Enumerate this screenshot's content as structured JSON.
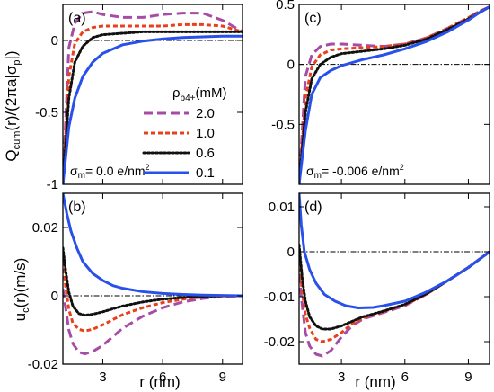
{
  "figure": {
    "ylabel_top_main": "Q",
    "ylabel_top_sub": "cum",
    "ylabel_top_rest": "(r)/(2πa|σ",
    "ylabel_top_sub2": "p",
    "ylabel_top_end": "|)",
    "ylabel_bottom": "u",
    "ylabel_bottom_sub": "c",
    "ylabel_bottom_rest": "(r)(m/s)",
    "xlabel_left": "r (nm)",
    "xlabel_right": "r (nm)",
    "legend_title": "ρ",
    "legend_title_sub": "b4+",
    "legend_title_unit": "(mM)"
  },
  "chart_data": [
    {
      "type": "line",
      "panel": "a",
      "annotation": "σ_m= 0.0 e/nm²",
      "annotation_main": "σ",
      "annotation_sub": "m",
      "annotation_rest": "= 0.0 e/nm",
      "annotation_sup": "2",
      "xlim": [
        1.0,
        10.0
      ],
      "ylim": [
        -1.0,
        0.25
      ],
      "xticks": [
        3,
        6,
        9
      ],
      "xtick_labels": [
        "",
        "",
        ""
      ],
      "yticks": [
        -1,
        -0.5,
        0
      ],
      "ytick_labels": [
        "-1",
        "-0.5",
        "0"
      ],
      "reference_line": 0,
      "series": [
        {
          "name": "2.0",
          "color": "#a64ca6",
          "dash": "10,5",
          "x": [
            1.0,
            1.3,
            1.6,
            2.0,
            2.5,
            3.0,
            4.0,
            5.0,
            6.0,
            7.0,
            8.0,
            9.0,
            9.5,
            10.0
          ],
          "y": [
            -1.0,
            -0.05,
            0.12,
            0.19,
            0.2,
            0.18,
            0.16,
            0.16,
            0.18,
            0.19,
            0.19,
            0.14,
            0.1,
            0.06
          ]
        },
        {
          "name": "1.0",
          "color": "#e8401c",
          "dash": "5,3",
          "x": [
            1.0,
            1.3,
            1.6,
            2.0,
            2.5,
            3.0,
            4.0,
            5.0,
            6.0,
            7.0,
            8.0,
            9.0,
            9.5,
            10.0
          ],
          "y": [
            -1.0,
            -0.25,
            -0.02,
            0.06,
            0.09,
            0.1,
            0.1,
            0.1,
            0.1,
            0.11,
            0.11,
            0.1,
            0.08,
            0.06
          ]
        },
        {
          "name": "0.6",
          "color": "#111111",
          "dash": "2,2.5",
          "x": [
            1.0,
            1.3,
            1.6,
            2.0,
            2.5,
            3.0,
            4.0,
            5.0,
            6.0,
            7.0,
            8.0,
            9.0,
            9.5,
            10.0
          ],
          "y": [
            -1.0,
            -0.4,
            -0.15,
            -0.04,
            0.02,
            0.04,
            0.05,
            0.06,
            0.06,
            0.06,
            0.06,
            0.06,
            0.06,
            0.06
          ]
        },
        {
          "name": "0.1",
          "color": "#2850ea",
          "dash": "",
          "x": [
            1.0,
            1.3,
            1.6,
            2.0,
            2.5,
            3.0,
            4.0,
            5.0,
            6.0,
            7.0,
            8.0,
            9.0,
            9.5,
            10.0
          ],
          "y": [
            -1.0,
            -0.6,
            -0.4,
            -0.25,
            -0.15,
            -0.09,
            -0.03,
            -0.005,
            0.01,
            0.02,
            0.025,
            0.03,
            0.03,
            0.03
          ]
        }
      ]
    },
    {
      "type": "line",
      "panel": "b",
      "xlim": [
        1.0,
        10.0
      ],
      "ylim": [
        -0.02,
        0.03
      ],
      "xticks": [
        3,
        6,
        9
      ],
      "xtick_labels": [
        "3",
        "6",
        "9"
      ],
      "yticks": [
        -0.02,
        0,
        0.02
      ],
      "ytick_labels": [
        "-0.02",
        "0",
        "0.02"
      ],
      "reference_line": 0,
      "series": [
        {
          "name": "2.0",
          "color": "#a64ca6",
          "dash": "10,5",
          "x": [
            1.0,
            1.15,
            1.3,
            1.5,
            1.8,
            2.1,
            2.5,
            3.0,
            3.5,
            4.0,
            5.0,
            6.0,
            7.0,
            8.0,
            9.0,
            10.0
          ],
          "y": [
            0.002,
            -0.004,
            -0.01,
            -0.014,
            -0.0165,
            -0.017,
            -0.0163,
            -0.0145,
            -0.012,
            -0.0095,
            -0.006,
            -0.0035,
            -0.0018,
            -0.0008,
            -0.0002,
            0.0
          ]
        },
        {
          "name": "1.0",
          "color": "#e8401c",
          "dash": "5,3",
          "x": [
            1.0,
            1.15,
            1.3,
            1.5,
            1.8,
            2.1,
            2.5,
            3.0,
            3.5,
            4.0,
            5.0,
            6.0,
            7.0,
            8.0,
            9.0,
            10.0
          ],
          "y": [
            0.01,
            0.002,
            -0.004,
            -0.008,
            -0.0098,
            -0.0103,
            -0.0098,
            -0.0085,
            -0.007,
            -0.0055,
            -0.0035,
            -0.002,
            -0.001,
            -0.0004,
            -0.0001,
            0.0
          ]
        },
        {
          "name": "0.6",
          "color": "#111111",
          "dash": "2,2.5",
          "x": [
            1.0,
            1.15,
            1.3,
            1.5,
            1.8,
            2.1,
            2.5,
            3.0,
            3.5,
            4.0,
            5.0,
            6.0,
            7.0,
            8.0,
            9.0,
            10.0
          ],
          "y": [
            0.014,
            0.007,
            0.001,
            -0.003,
            -0.0052,
            -0.0057,
            -0.0054,
            -0.0047,
            -0.0038,
            -0.003,
            -0.0018,
            -0.001,
            -0.0005,
            -0.0002,
            0.0,
            0.0
          ]
        },
        {
          "name": "0.1",
          "color": "#2850ea",
          "dash": "",
          "x": [
            1.0,
            1.2,
            1.4,
            1.7,
            2.0,
            2.5,
            3.0,
            3.5,
            4.0,
            5.0,
            6.0,
            7.0,
            8.0,
            9.0,
            10.0
          ],
          "y": [
            0.03,
            0.024,
            0.019,
            0.014,
            0.01,
            0.0065,
            0.0045,
            0.003,
            0.0022,
            0.0012,
            0.0007,
            0.0004,
            0.0002,
            0.0001,
            0.0
          ]
        }
      ]
    },
    {
      "type": "line",
      "panel": "c",
      "annotation": "σ_m= -0.006 e/nm²",
      "annotation_main": "σ",
      "annotation_sub": "m",
      "annotation_rest": "= -0.006 e/nm",
      "annotation_sup": "2",
      "xlim": [
        1.0,
        10.0
      ],
      "ylim": [
        -1.0,
        0.5
      ],
      "xticks": [
        3,
        6,
        9
      ],
      "xtick_labels": [
        "",
        "",
        ""
      ],
      "yticks": [
        -0.5,
        0,
        0.5
      ],
      "ytick_labels": [
        "-0.5",
        "0",
        "0.5"
      ],
      "reference_line": 0,
      "series": [
        {
          "name": "2.0",
          "color": "#a64ca6",
          "dash": "10,5",
          "x": [
            1.0,
            1.3,
            1.6,
            2.0,
            2.5,
            3.0,
            4.0,
            5.0,
            6.0,
            7.0,
            8.0,
            9.0,
            9.5,
            10.0
          ],
          "y": [
            -1.0,
            -0.1,
            0.08,
            0.15,
            0.17,
            0.17,
            0.16,
            0.15,
            0.17,
            0.22,
            0.3,
            0.39,
            0.44,
            0.48
          ]
        },
        {
          "name": "1.0",
          "color": "#e8401c",
          "dash": "5,3",
          "x": [
            1.0,
            1.3,
            1.6,
            2.0,
            2.5,
            3.0,
            4.0,
            5.0,
            6.0,
            7.0,
            8.0,
            9.0,
            9.5,
            10.0
          ],
          "y": [
            -1.0,
            -0.28,
            -0.02,
            0.08,
            0.12,
            0.13,
            0.14,
            0.15,
            0.17,
            0.22,
            0.3,
            0.39,
            0.44,
            0.48
          ]
        },
        {
          "name": "0.6",
          "color": "#111111",
          "dash": "2,2.5",
          "x": [
            1.0,
            1.3,
            1.6,
            2.0,
            2.5,
            3.0,
            4.0,
            5.0,
            6.0,
            7.0,
            8.0,
            9.0,
            9.5,
            10.0
          ],
          "y": [
            -1.0,
            -0.4,
            -0.12,
            0.0,
            0.06,
            0.09,
            0.11,
            0.13,
            0.16,
            0.21,
            0.29,
            0.38,
            0.43,
            0.48
          ]
        },
        {
          "name": "0.1",
          "color": "#2850ea",
          "dash": "",
          "x": [
            1.0,
            1.3,
            1.6,
            2.0,
            2.5,
            3.0,
            4.0,
            5.0,
            6.0,
            7.0,
            8.0,
            9.0,
            9.5,
            10.0
          ],
          "y": [
            -1.0,
            -0.55,
            -0.25,
            -0.11,
            -0.05,
            -0.01,
            0.04,
            0.08,
            0.13,
            0.19,
            0.27,
            0.37,
            0.43,
            0.48
          ]
        }
      ]
    },
    {
      "type": "line",
      "panel": "d",
      "xlim": [
        1.0,
        10.0
      ],
      "ylim": [
        -0.025,
        0.013
      ],
      "xticks": [
        3,
        6,
        9
      ],
      "xtick_labels": [
        "3",
        "6",
        "9"
      ],
      "yticks": [
        -0.02,
        -0.01,
        0,
        0.01
      ],
      "ytick_labels": [
        "-0.02",
        "-0.01",
        "0",
        "0.01"
      ],
      "reference_line": 0,
      "series": [
        {
          "name": "2.0",
          "color": "#a64ca6",
          "dash": "10,5",
          "x": [
            1.0,
            1.15,
            1.3,
            1.5,
            1.8,
            2.1,
            2.5,
            3.0,
            3.5,
            4.0,
            5.0,
            6.0,
            7.0,
            8.0,
            9.0,
            10.0
          ],
          "y": [
            -0.005,
            -0.012,
            -0.018,
            -0.021,
            -0.0228,
            -0.0232,
            -0.022,
            -0.019,
            -0.0165,
            -0.015,
            -0.0135,
            -0.012,
            -0.0095,
            -0.0065,
            -0.0035,
            0.0
          ]
        },
        {
          "name": "1.0",
          "color": "#e8401c",
          "dash": "5,3",
          "x": [
            1.0,
            1.15,
            1.3,
            1.5,
            1.8,
            2.1,
            2.5,
            3.0,
            3.5,
            4.0,
            5.0,
            6.0,
            7.0,
            8.0,
            9.0,
            10.0
          ],
          "y": [
            -0.002,
            -0.009,
            -0.014,
            -0.017,
            -0.0195,
            -0.02,
            -0.0195,
            -0.018,
            -0.016,
            -0.0148,
            -0.0133,
            -0.0118,
            -0.0095,
            -0.0065,
            -0.0035,
            0.0
          ]
        },
        {
          "name": "0.6",
          "color": "#111111",
          "dash": "2,2.5",
          "x": [
            1.0,
            1.15,
            1.3,
            1.5,
            1.8,
            2.1,
            2.5,
            3.0,
            3.5,
            4.0,
            5.0,
            6.0,
            7.0,
            8.0,
            9.0,
            10.0
          ],
          "y": [
            0.0015,
            -0.006,
            -0.011,
            -0.0145,
            -0.0165,
            -0.0172,
            -0.0172,
            -0.0165,
            -0.0155,
            -0.0145,
            -0.0132,
            -0.0117,
            -0.0094,
            -0.0065,
            -0.0035,
            0.0
          ]
        },
        {
          "name": "0.1",
          "color": "#2850ea",
          "dash": "",
          "x": [
            1.0,
            1.1,
            1.25,
            1.5,
            1.8,
            2.2,
            2.7,
            3.2,
            3.8,
            4.5,
            5.0,
            6.0,
            7.0,
            8.0,
            9.0,
            10.0
          ],
          "y": [
            0.013,
            0.006,
            0.0,
            -0.004,
            -0.007,
            -0.0095,
            -0.011,
            -0.012,
            -0.0125,
            -0.0124,
            -0.012,
            -0.011,
            -0.009,
            -0.0065,
            -0.0035,
            0.0
          ]
        }
      ]
    }
  ]
}
